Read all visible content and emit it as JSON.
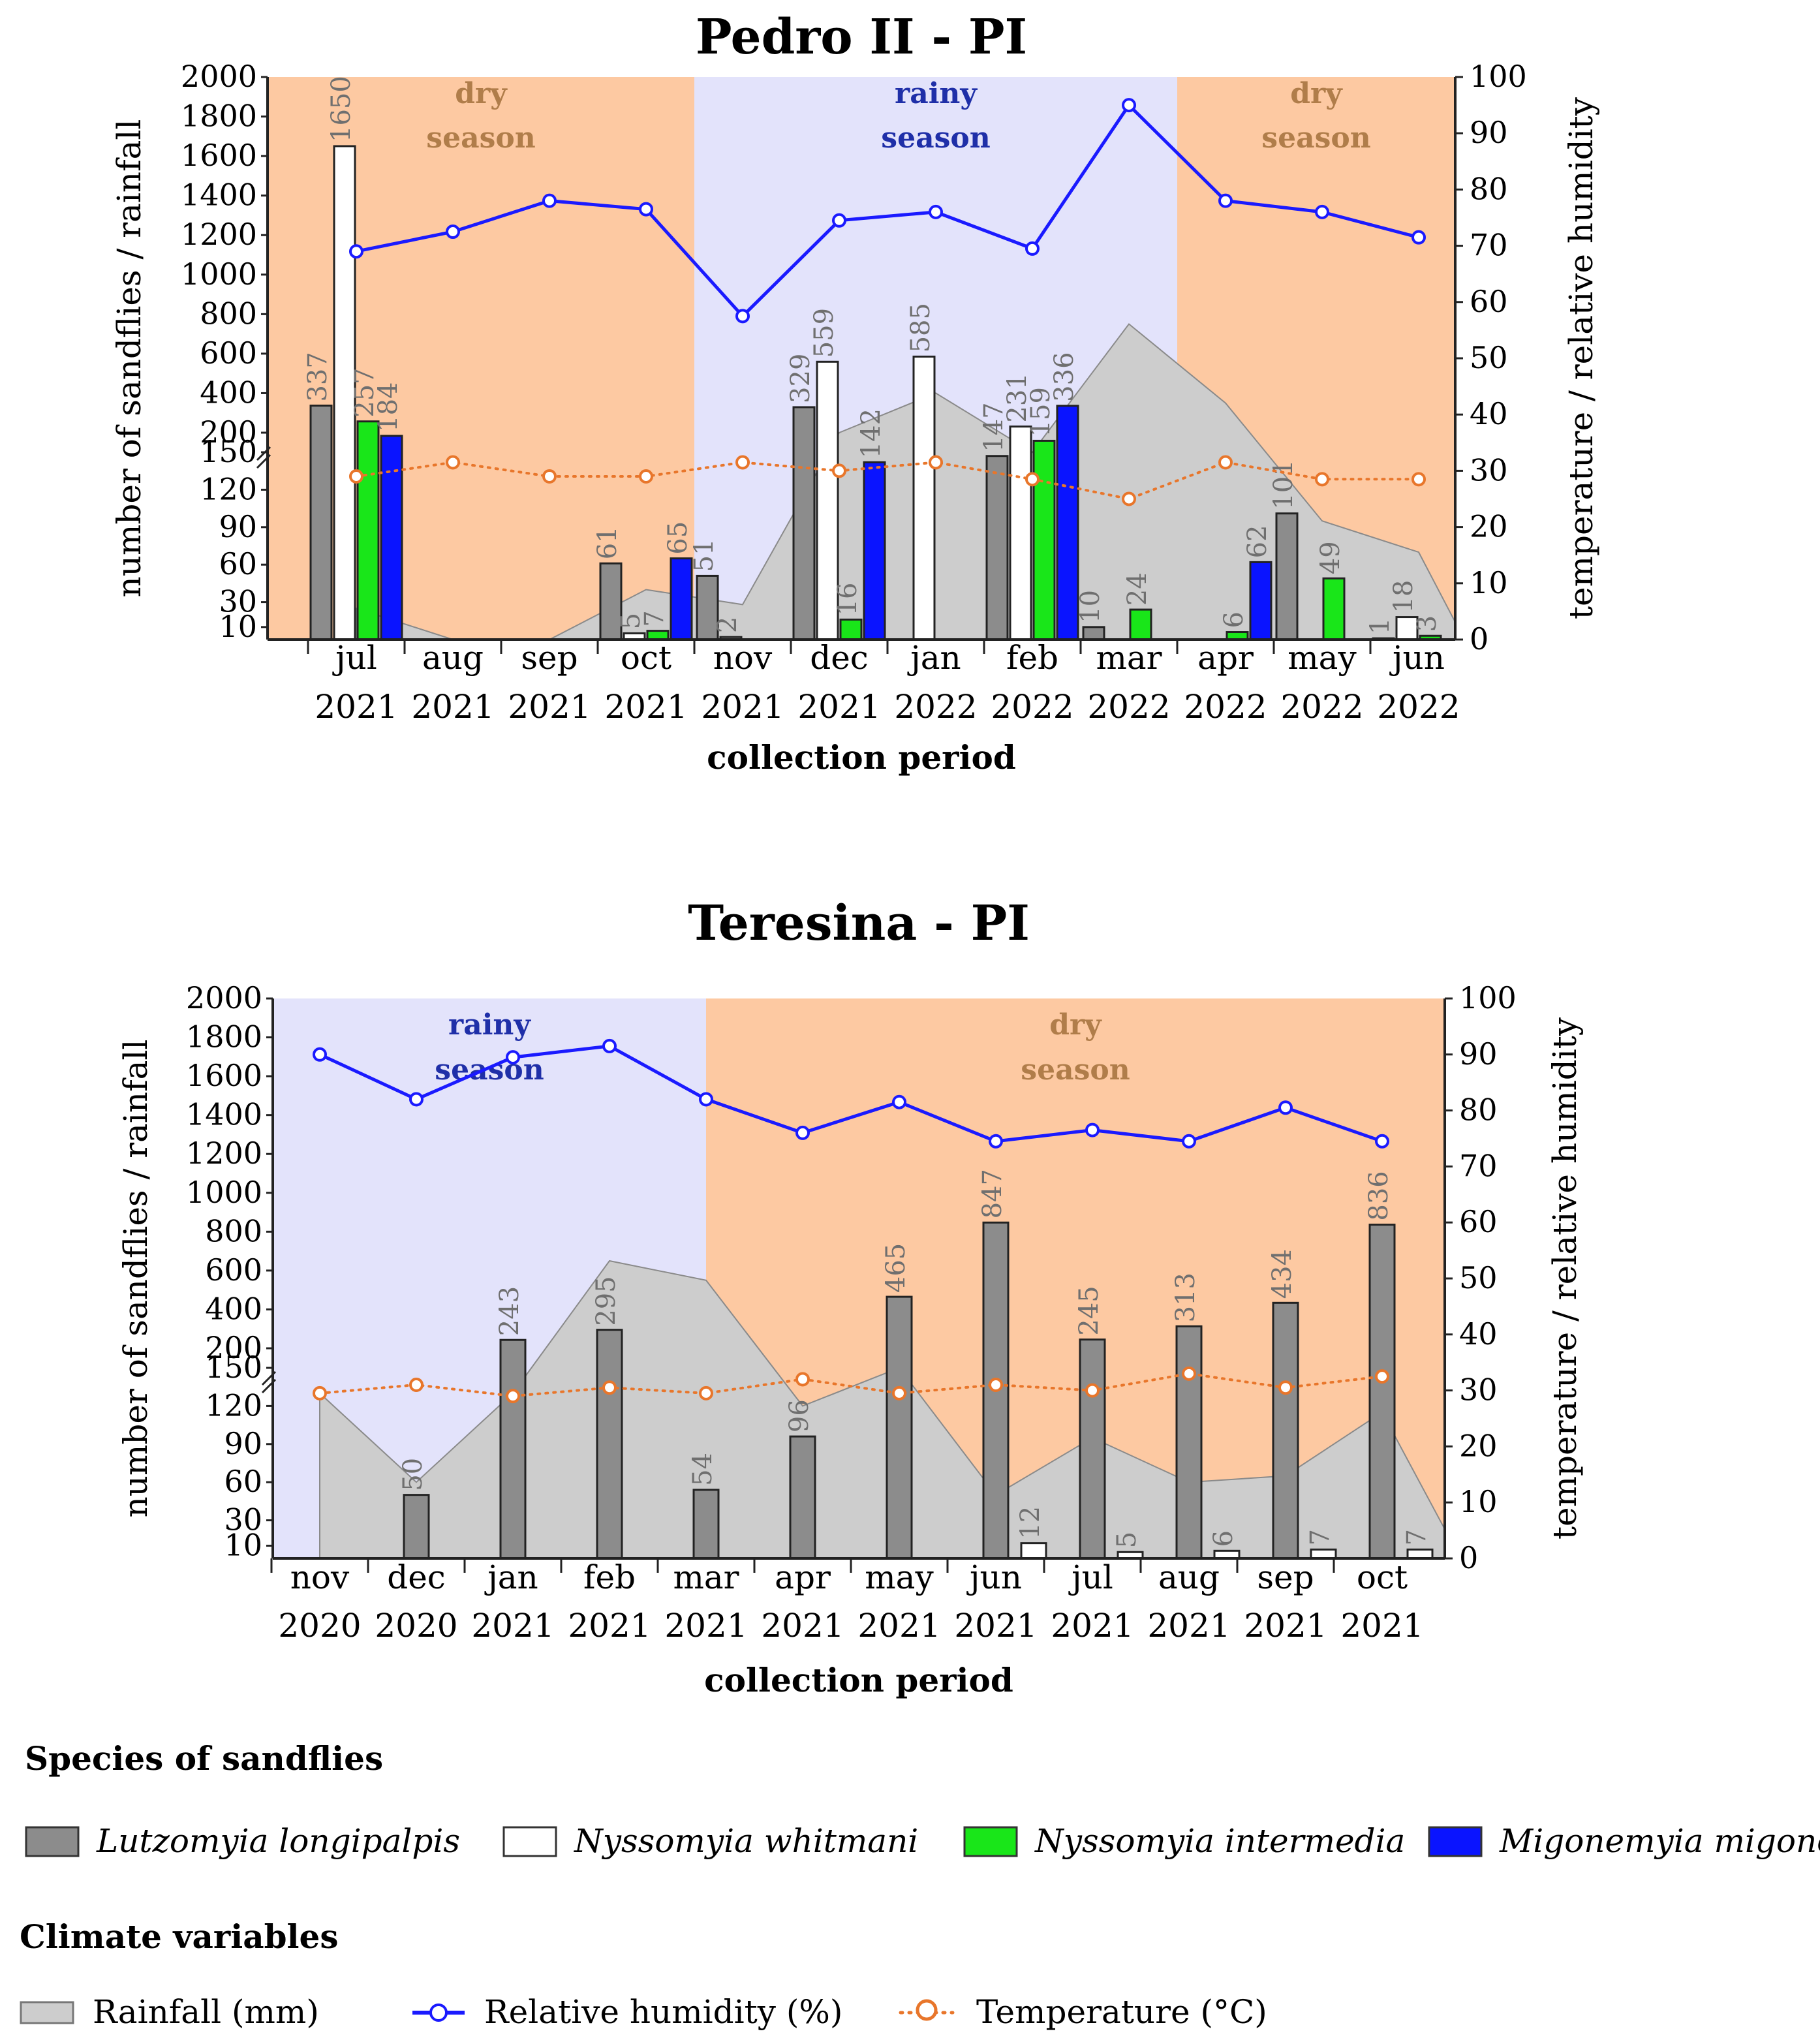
{
  "colors": {
    "lutzomyia": "#8c8c8c",
    "whitmani": "#ffffff",
    "intermedia": "#19e619",
    "migonei": "#0a14ff",
    "rainfall": "#cdcdcd",
    "humidity": "#1a1aff",
    "temperature": "#e8762b",
    "dry": "#fdc9a2",
    "rainy": "#e3e3fb",
    "dry_text": "#b07d4a",
    "rainy_text": "#1f2fa8"
  },
  "y_left_ticks_top": [
    "200",
    "400",
    "600",
    "800",
    "1000",
    "1200",
    "1400",
    "1600",
    "1800",
    "2000"
  ],
  "y_left_ticks_bottom": [
    "10",
    "30",
    "60",
    "90",
    "120",
    "150"
  ],
  "y_right_ticks": [
    "0",
    "10",
    "20",
    "30",
    "40",
    "50",
    "60",
    "70",
    "80",
    "90",
    "100"
  ],
  "chart_data": [
    {
      "type": "bar",
      "title": "Pedro II - PI",
      "xlabel": "collection period",
      "ylabel_left": "number of sandflies / rainfall",
      "ylabel_right": "temperature / relative humidity",
      "ylim_left": [
        0,
        2000
      ],
      "ylim_left_break": [
        150,
        200
      ],
      "ylim_right": [
        0,
        100
      ],
      "categories": [
        {
          "month": "jul",
          "year": "2021"
        },
        {
          "month": "aug",
          "year": "2021"
        },
        {
          "month": "sep",
          "year": "2021"
        },
        {
          "month": "oct",
          "year": "2021"
        },
        {
          "month": "nov",
          "year": "2021"
        },
        {
          "month": "dec",
          "year": "2021"
        },
        {
          "month": "jan",
          "year": "2022"
        },
        {
          "month": "feb",
          "year": "2022"
        },
        {
          "month": "mar",
          "year": "2022"
        },
        {
          "month": "apr",
          "year": "2022"
        },
        {
          "month": "may",
          "year": "2022"
        },
        {
          "month": "jun",
          "year": "2022"
        }
      ],
      "seasons": [
        {
          "top": "dry",
          "bottom": "season",
          "kind": "dry",
          "start": 0,
          "end": 4
        },
        {
          "top": "rainy",
          "bottom": "season",
          "kind": "rainy",
          "start": 4,
          "end": 9
        },
        {
          "top": "dry",
          "bottom": "season",
          "kind": "dry",
          "start": 9,
          "end": 12
        }
      ],
      "series": [
        {
          "name": "Lutzomyia longipalpis",
          "key": "lutzomyia",
          "values": [
            337,
            null,
            null,
            61,
            51,
            329,
            null,
            147,
            10,
            null,
            101,
            1
          ]
        },
        {
          "name": "Nyssomyia whitmani",
          "key": "whitmani",
          "values": [
            1650,
            null,
            null,
            5,
            2,
            559,
            585,
            231,
            null,
            null,
            null,
            18
          ]
        },
        {
          "name": "Nyssomyia intermedia",
          "key": "intermedia",
          "values": [
            257,
            null,
            null,
            7,
            null,
            16,
            null,
            159,
            24,
            6,
            49,
            3
          ]
        },
        {
          "name": "Migonemyia migonei",
          "key": "migonei",
          "values": [
            184,
            null,
            null,
            65,
            null,
            142,
            null,
            336,
            null,
            62,
            null,
            null
          ]
        }
      ],
      "rainfall": [
        25,
        0,
        0,
        40,
        28,
        200,
        400,
        150,
        750,
        350,
        95,
        70
      ],
      "humidity": [
        69,
        72.5,
        78,
        76.5,
        57.5,
        74.5,
        76,
        69.5,
        95,
        78,
        76,
        71.5
      ],
      "temperature": [
        29,
        31.5,
        29,
        29,
        31.5,
        30,
        31.5,
        28.5,
        25,
        31.5,
        28.5,
        28.5
      ]
    },
    {
      "type": "bar",
      "title": "Teresina - PI",
      "xlabel": "collection period",
      "ylabel_left": "number of sandflies / rainfall",
      "ylabel_right": "temperature / relative humidity",
      "ylim_left": [
        0,
        2000
      ],
      "ylim_left_break": [
        150,
        200
      ],
      "ylim_right": [
        0,
        100
      ],
      "categories": [
        {
          "month": "nov",
          "year": "2020"
        },
        {
          "month": "dec",
          "year": "2020"
        },
        {
          "month": "jan",
          "year": "2021"
        },
        {
          "month": "feb",
          "year": "2021"
        },
        {
          "month": "mar",
          "year": "2021"
        },
        {
          "month": "apr",
          "year": "2021"
        },
        {
          "month": "may",
          "year": "2021"
        },
        {
          "month": "jun",
          "year": "2021"
        },
        {
          "month": "jul",
          "year": "2021"
        },
        {
          "month": "aug",
          "year": "2021"
        },
        {
          "month": "sep",
          "year": "2021"
        },
        {
          "month": "oct",
          "year": "2021"
        }
      ],
      "seasons": [
        {
          "top": "rainy",
          "bottom": "season",
          "kind": "rainy",
          "start": 0,
          "end": 4.5
        },
        {
          "top": "dry",
          "bottom": "season",
          "kind": "dry",
          "start": 4.5,
          "end": 12
        }
      ],
      "series": [
        {
          "name": "Lutzomyia longipalpis",
          "key": "lutzomyia",
          "values": [
            null,
            50,
            243,
            295,
            54,
            96,
            465,
            847,
            245,
            313,
            434,
            836
          ]
        },
        {
          "name": "Nyssomyia whitmani",
          "key": "whitmani",
          "values": [
            null,
            null,
            null,
            null,
            null,
            null,
            null,
            12,
            5,
            6,
            7,
            7
          ]
        }
      ],
      "rainfall": [
        130,
        60,
        130,
        650,
        550,
        120,
        150,
        50,
        95,
        60,
        65,
        115
      ],
      "humidity": [
        90,
        82,
        89.5,
        91.5,
        82,
        76,
        81.5,
        74.5,
        76.5,
        74.5,
        80.5,
        74.5
      ],
      "temperature": [
        29.5,
        31,
        29,
        30.5,
        29.5,
        32,
        29.5,
        31,
        30,
        33,
        30.5,
        32.5
      ]
    }
  ],
  "legend": {
    "species_title": "Species of sandflies",
    "species": [
      {
        "key": "lutzomyia",
        "label": "Lutzomyia longipalpis"
      },
      {
        "key": "whitmani",
        "label": "Nyssomyia whitmani"
      },
      {
        "key": "intermedia",
        "label": "Nyssomyia intermedia"
      },
      {
        "key": "migonei",
        "label": "Migonemyia migonei"
      }
    ],
    "climate_title": "Climate variables",
    "rainfall_label": "Rainfall (mm)",
    "humidity_label": "Relative humidity (%)",
    "temperature_label": "Temperature (°C)"
  }
}
